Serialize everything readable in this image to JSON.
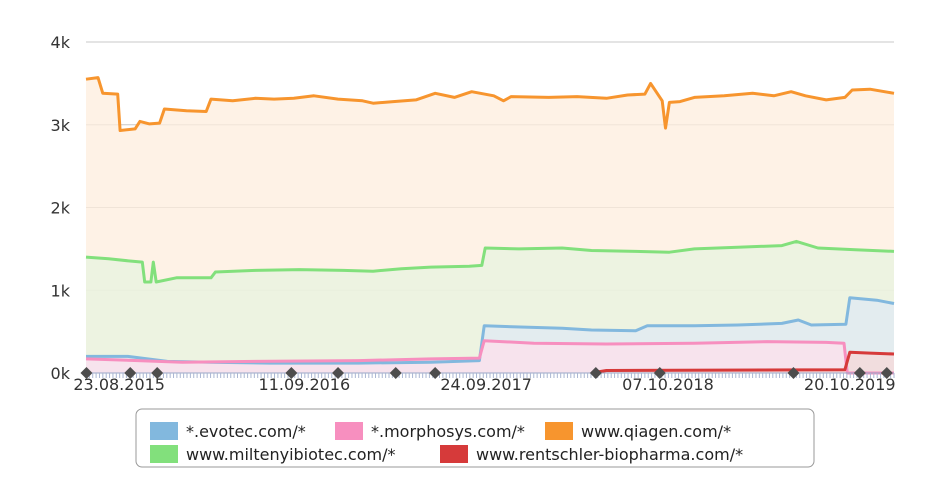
{
  "chart_data": {
    "type": "area",
    "x_start": "2015-06-15",
    "x_end": "2020-01-20",
    "ylim": [
      0,
      4000
    ],
    "yticks": [
      0,
      1000,
      2000,
      3000,
      4000
    ],
    "ytick_labels": [
      "0k",
      "1k",
      "2k",
      "3k",
      "4k"
    ],
    "xtick_labels": [
      {
        "label": "23.08.2015",
        "date": "2015-08-23"
      },
      {
        "label": "11.09.2016",
        "date": "2016-09-11"
      },
      {
        "label": "24.09.2017",
        "date": "2017-09-24"
      },
      {
        "label": "07.10.2018",
        "date": "2018-10-07"
      },
      {
        "label": "20.10.2019",
        "date": "2019-10-20"
      }
    ],
    "annotation_markers": [
      "2015-06-16",
      "2015-09-15",
      "2015-11-10",
      "2016-08-15",
      "2016-11-20",
      "2017-03-20",
      "2017-06-10",
      "2018-05-10",
      "2018-09-20",
      "2019-06-25",
      "2019-11-10",
      "2020-01-05"
    ],
    "grid": true,
    "legend_position": "bottom",
    "series": [
      {
        "name": "www.qiagen.com/*",
        "color": "#f7952e",
        "fill": "#fdeede",
        "points": [
          [
            "2015-06-15",
            3550
          ],
          [
            "2015-07-10",
            3570
          ],
          [
            "2015-07-20",
            3380
          ],
          [
            "2015-08-20",
            3370
          ],
          [
            "2015-08-25",
            2930
          ],
          [
            "2015-09-25",
            2950
          ],
          [
            "2015-10-05",
            3040
          ],
          [
            "2015-10-25",
            3010
          ],
          [
            "2015-11-15",
            3020
          ],
          [
            "2015-11-25",
            3190
          ],
          [
            "2016-01-10",
            3170
          ],
          [
            "2016-02-20",
            3160
          ],
          [
            "2016-03-01",
            3310
          ],
          [
            "2016-04-15",
            3290
          ],
          [
            "2016-06-01",
            3320
          ],
          [
            "2016-07-10",
            3310
          ],
          [
            "2016-08-20",
            3320
          ],
          [
            "2016-10-01",
            3350
          ],
          [
            "2016-11-20",
            3310
          ],
          [
            "2017-01-10",
            3290
          ],
          [
            "2017-02-01",
            3260
          ],
          [
            "2017-03-15",
            3280
          ],
          [
            "2017-05-01",
            3300
          ],
          [
            "2017-06-10",
            3380
          ],
          [
            "2017-07-20",
            3330
          ],
          [
            "2017-08-25",
            3400
          ],
          [
            "2017-10-10",
            3350
          ],
          [
            "2017-10-30",
            3290
          ],
          [
            "2017-11-15",
            3340
          ],
          [
            "2018-02-01",
            3330
          ],
          [
            "2018-04-01",
            3340
          ],
          [
            "2018-06-01",
            3320
          ],
          [
            "2018-07-15",
            3360
          ],
          [
            "2018-08-20",
            3370
          ],
          [
            "2018-09-01",
            3500
          ],
          [
            "2018-09-25",
            3290
          ],
          [
            "2018-10-02",
            2960
          ],
          [
            "2018-10-10",
            3270
          ],
          [
            "2018-11-01",
            3280
          ],
          [
            "2018-12-01",
            3330
          ],
          [
            "2019-02-01",
            3350
          ],
          [
            "2019-04-01",
            3380
          ],
          [
            "2019-05-15",
            3350
          ],
          [
            "2019-06-20",
            3400
          ],
          [
            "2019-07-20",
            3350
          ],
          [
            "2019-09-01",
            3300
          ],
          [
            "2019-10-10",
            3330
          ],
          [
            "2019-10-25",
            3420
          ],
          [
            "2019-12-01",
            3430
          ],
          [
            "2020-01-20",
            3380
          ]
        ]
      },
      {
        "name": "www.miltenyibiotec.com/*",
        "color": "#82e07c",
        "fill": "#e7f3df",
        "points": [
          [
            "2015-06-15",
            1400
          ],
          [
            "2015-08-01",
            1380
          ],
          [
            "2015-09-20",
            1350
          ],
          [
            "2015-10-10",
            1340
          ],
          [
            "2015-10-15",
            1100
          ],
          [
            "2015-10-28",
            1100
          ],
          [
            "2015-11-02",
            1340
          ],
          [
            "2015-11-08",
            1100
          ],
          [
            "2015-12-20",
            1150
          ],
          [
            "2016-03-01",
            1150
          ],
          [
            "2016-03-10",
            1220
          ],
          [
            "2016-06-01",
            1240
          ],
          [
            "2016-09-01",
            1250
          ],
          [
            "2016-12-01",
            1240
          ],
          [
            "2017-02-01",
            1230
          ],
          [
            "2017-04-01",
            1260
          ],
          [
            "2017-06-01",
            1280
          ],
          [
            "2017-08-20",
            1290
          ],
          [
            "2017-09-15",
            1300
          ],
          [
            "2017-09-22",
            1510
          ],
          [
            "2017-12-01",
            1500
          ],
          [
            "2018-03-01",
            1510
          ],
          [
            "2018-05-01",
            1480
          ],
          [
            "2018-08-01",
            1470
          ],
          [
            "2018-10-10",
            1460
          ],
          [
            "2018-12-01",
            1500
          ],
          [
            "2019-03-01",
            1520
          ],
          [
            "2019-06-01",
            1540
          ],
          [
            "2019-07-01",
            1590
          ],
          [
            "2019-08-15",
            1510
          ],
          [
            "2019-11-01",
            1490
          ],
          [
            "2020-01-20",
            1470
          ]
        ]
      },
      {
        "name": "*.evotec.com/*",
        "color": "#82b8de",
        "fill": "#dfeaf3",
        "points": [
          [
            "2015-06-15",
            200
          ],
          [
            "2015-09-10",
            200
          ],
          [
            "2015-12-01",
            140
          ],
          [
            "2016-03-01",
            130
          ],
          [
            "2016-07-01",
            120
          ],
          [
            "2017-01-01",
            120
          ],
          [
            "2017-06-01",
            130
          ],
          [
            "2017-09-10",
            150
          ],
          [
            "2017-09-20",
            570
          ],
          [
            "2018-03-01",
            540
          ],
          [
            "2018-05-01",
            520
          ],
          [
            "2018-08-01",
            510
          ],
          [
            "2018-08-25",
            570
          ],
          [
            "2018-12-01",
            570
          ],
          [
            "2019-03-01",
            580
          ],
          [
            "2019-06-01",
            600
          ],
          [
            "2019-07-05",
            640
          ],
          [
            "2019-08-01",
            580
          ],
          [
            "2019-10-12",
            590
          ],
          [
            "2019-10-20",
            910
          ],
          [
            "2019-12-15",
            880
          ],
          [
            "2020-01-20",
            840
          ]
        ]
      },
      {
        "name": "*.morphosys.com/*",
        "color": "#f78fbf",
        "fill": "#fde0ec",
        "points": [
          [
            "2015-06-15",
            170
          ],
          [
            "2015-10-01",
            150
          ],
          [
            "2016-01-01",
            130
          ],
          [
            "2016-06-01",
            140
          ],
          [
            "2017-01-01",
            150
          ],
          [
            "2017-06-01",
            170
          ],
          [
            "2017-09-10",
            180
          ],
          [
            "2017-09-20",
            390
          ],
          [
            "2018-01-01",
            360
          ],
          [
            "2018-06-01",
            350
          ],
          [
            "2018-12-01",
            360
          ],
          [
            "2019-05-01",
            380
          ],
          [
            "2019-09-01",
            370
          ],
          [
            "2019-10-08",
            360
          ],
          [
            "2019-10-15",
            0
          ],
          [
            "2020-01-20",
            0
          ]
        ]
      },
      {
        "name": "www.rentschler-biopharma.com/*",
        "color": "#d63a3a",
        "fill": "#f5d8d8",
        "points": [
          [
            "2018-05-01",
            0
          ],
          [
            "2018-06-01",
            30
          ],
          [
            "2019-10-10",
            40
          ],
          [
            "2019-10-20",
            250
          ],
          [
            "2019-12-01",
            240
          ],
          [
            "2020-01-20",
            230
          ]
        ]
      }
    ],
    "legend_order": [
      "*.evotec.com/*",
      "*.morphosys.com/*",
      "www.qiagen.com/*",
      "www.miltenyibiotec.com/*",
      "www.rentschler-biopharma.com/*"
    ]
  }
}
